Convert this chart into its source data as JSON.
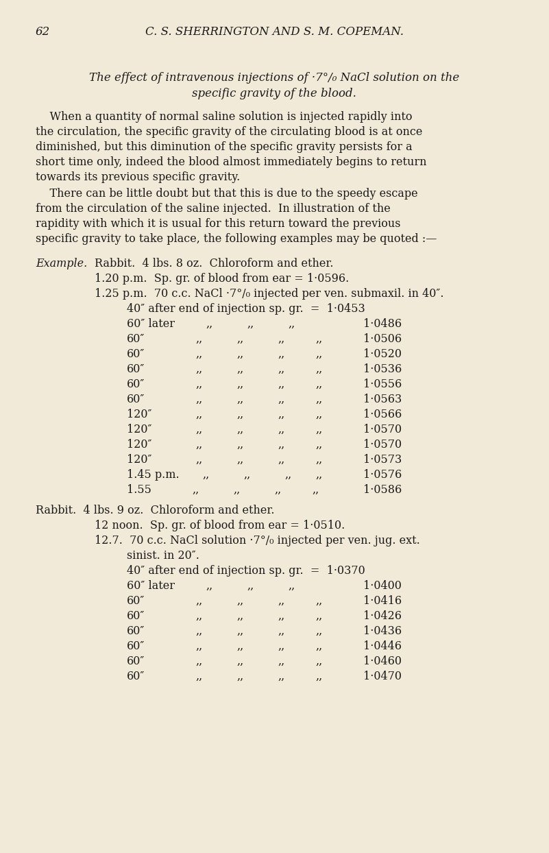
{
  "bg_color": "#f2ead8",
  "text_color": "#1a1a1a",
  "page_number": "62",
  "header": "C. S. SHERRINGTON AND S. M. COPEMAN.",
  "title_line1": "The effect of intravenous injections of ·7°/₀ NaCl solution on the",
  "title_line2": "specific gravity of the blood.",
  "para1_lines": [
    "    When a quantity of normal saline solution is injected rapidly into",
    "the circulation, the specific gravity of the circulating blood is at once",
    "diminished, but this diminution of the specific gravity persists for a",
    "short time only, indeed the blood almost immediately begins to return",
    "towards its previous specific gravity."
  ],
  "para2_lines": [
    "    There can be little doubt but that this is due to the speedy escape",
    "from the circulation of the saline injected.  In illustration of the",
    "rapidity with which it is usual for this return toward the previous",
    "specific gravity to take place, the following examples may be quoted :—"
  ],
  "example_label": "Example.",
  "rabbit1_header": "Rabbit.  4 lbs. 8 oz.  Chloroform and ether.",
  "rabbit1_line1": "1.20 p.m.  Sp. gr. of blood from ear = 1·0596.",
  "rabbit1_line2": "1.25 p.m.  70 c.c. NaCl ·7°/₀ injected per ven. submaxil. in 40″.",
  "rabbit1_injection": "40″ after end of injection sp. gr.  =  1·0453",
  "rabbit1_rows": [
    [
      "60″ later",
      "1·0486"
    ],
    [
      "60″",
      "1·0506"
    ],
    [
      "60″",
      "1·0520"
    ],
    [
      "60″",
      "1·0536"
    ],
    [
      "60″",
      "1·0556"
    ],
    [
      "60″",
      "1·0563"
    ],
    [
      "120″",
      "1·0566"
    ],
    [
      "120″",
      "1·0570"
    ],
    [
      "120″",
      "1·0570"
    ],
    [
      "120″",
      "1·0573"
    ],
    [
      "1.45 p.m.",
      "1·0576"
    ],
    [
      "1.55",
      "1·0586"
    ]
  ],
  "rabbit2_header": "Rabbit.  4 lbs. 9 oz.  Chloroform and ether.",
  "rabbit2_line1": "12 noon.  Sp. gr. of blood from ear = 1·0510.",
  "rabbit2_line2a": "12.7.  70 c.c. NaCl solution ·7°/₀ injected per ven. jug. ext.",
  "rabbit2_line2b": "sinist. in 20″.",
  "rabbit2_injection": "40″ after end of injection sp. gr.  =  1·0370",
  "rabbit2_rows": [
    [
      "60″ later",
      "1·0400"
    ],
    [
      "60″",
      "1·0416"
    ],
    [
      "60″",
      "1·0426"
    ],
    [
      "60″",
      "1·0436"
    ],
    [
      "60″",
      "1·0446"
    ],
    [
      "60″",
      "1·0460"
    ],
    [
      "60″",
      "1·0470"
    ]
  ],
  "comma_str": ",,",
  "comma_cols_row0": [
    300,
    360,
    420
  ],
  "comma_cols_rest": [
    285,
    345,
    405
  ],
  "value_col": 530
}
